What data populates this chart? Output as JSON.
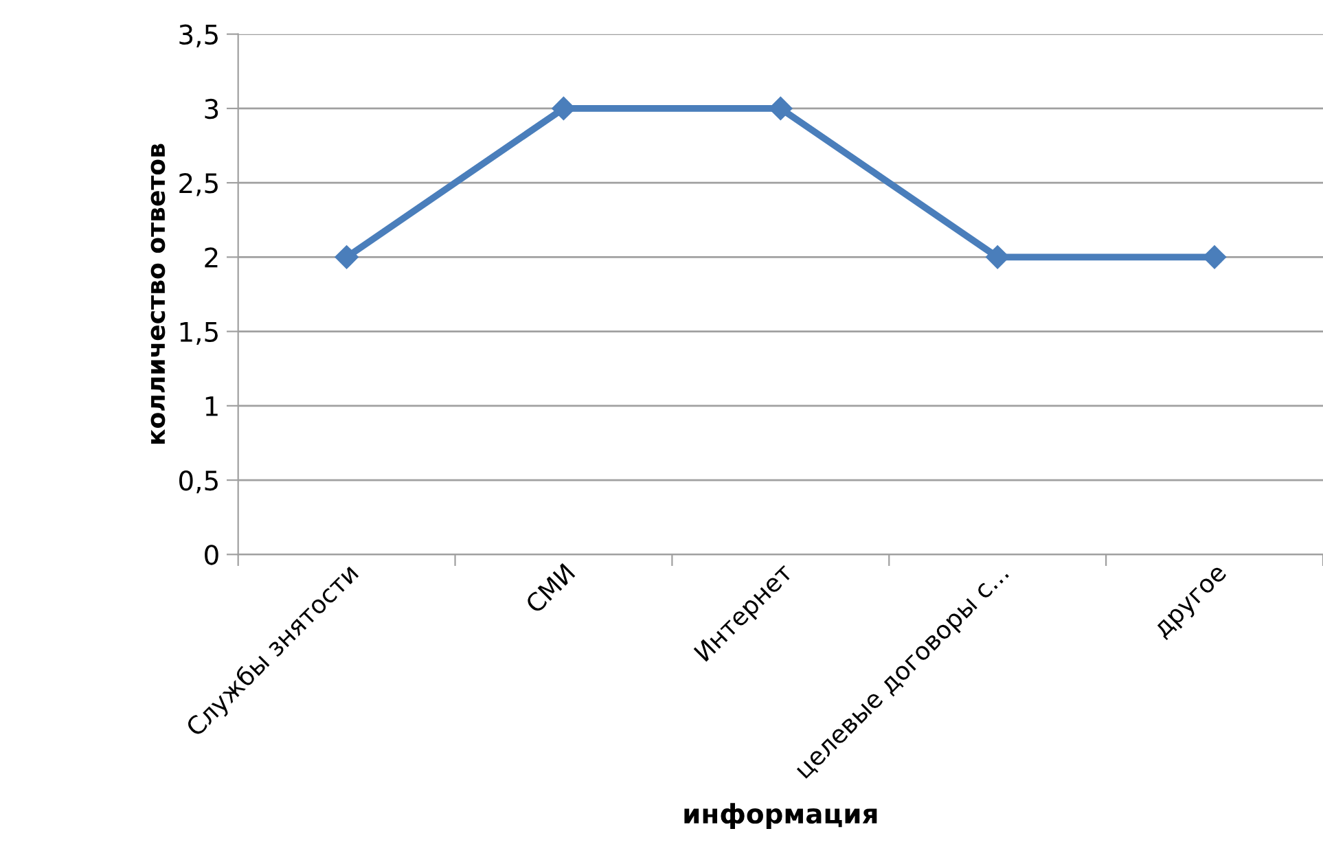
{
  "chart_data": {
    "type": "line",
    "xlabel": "информация",
    "ylabel": "колличество ответов",
    "categories": [
      "Службы знятости",
      "СМИ",
      "Интернет",
      "целевые договоры с...",
      "другое"
    ],
    "series": [
      {
        "color": "#4a7ebb",
        "values": [
          2,
          3,
          3,
          2,
          2
        ]
      }
    ],
    "ylim": [
      0,
      3.5
    ],
    "yticks": [
      0,
      {
        "value": 0.5,
        "label": "0,5"
      },
      1,
      {
        "value": 1.5,
        "label": "1,5"
      },
      2,
      {
        "value": 2.5,
        "label": "2,5"
      },
      3,
      {
        "value": 3.5,
        "label": "3,5"
      }
    ],
    "grid": "y",
    "marker": "diamond",
    "line_style": "solid",
    "legend": false
  }
}
